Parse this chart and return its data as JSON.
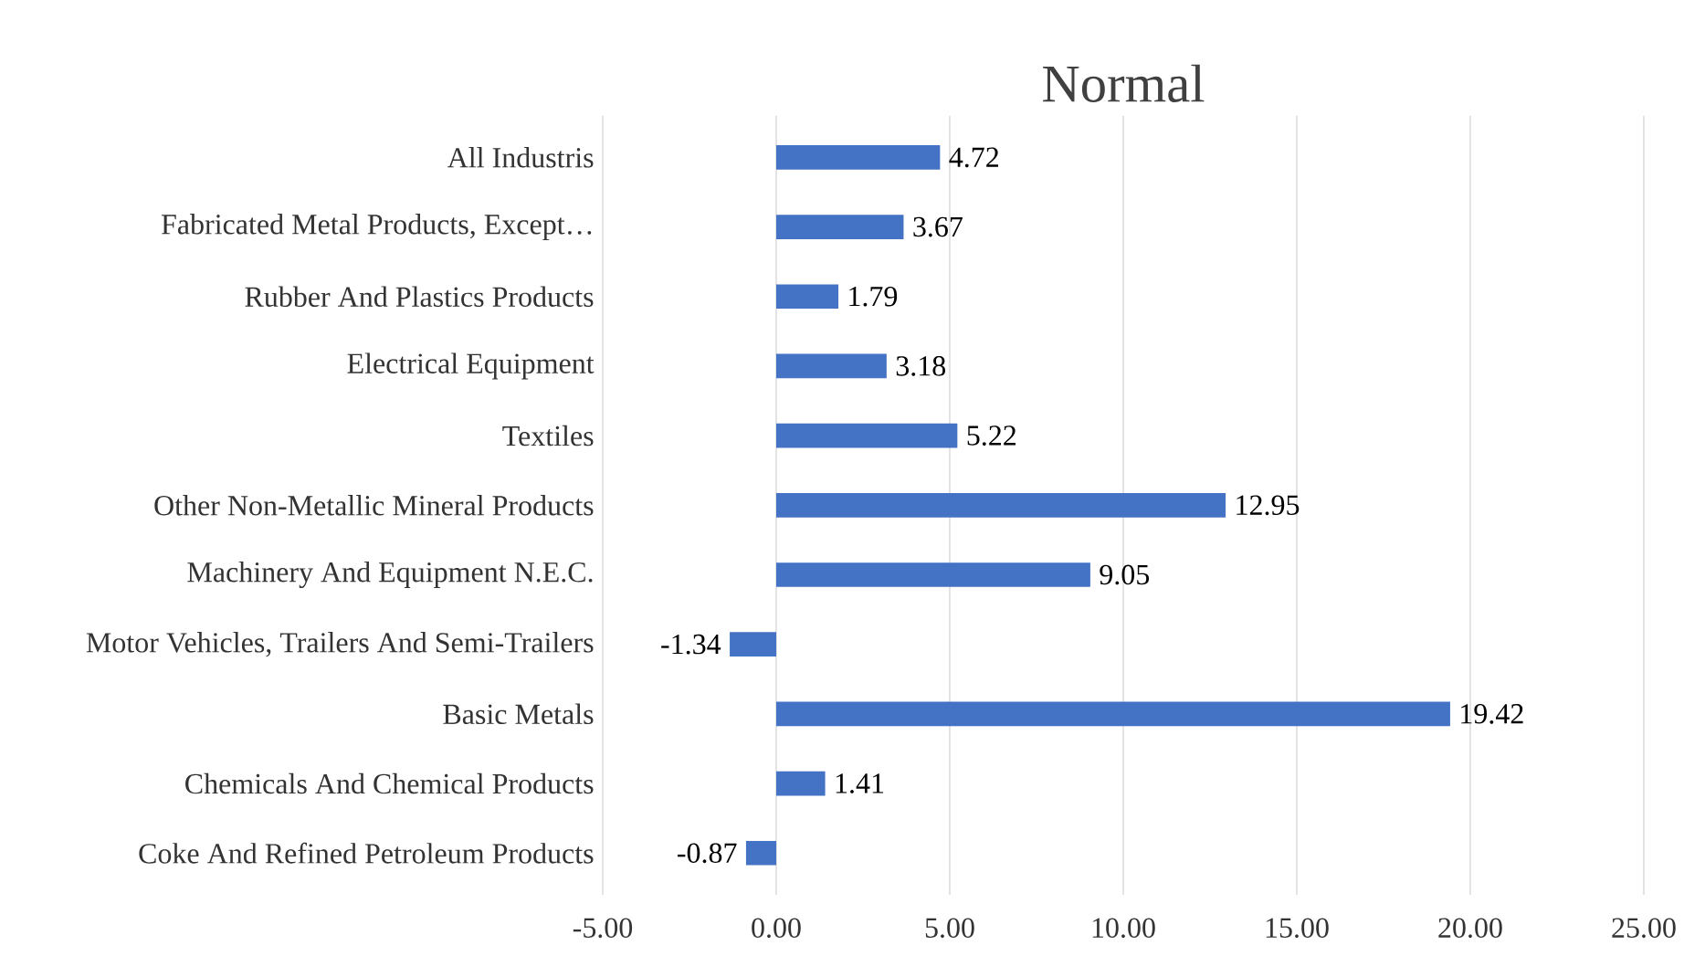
{
  "chart_data": {
    "type": "bar",
    "orientation": "horizontal",
    "title": "Normal",
    "categories": [
      "All Industris",
      "Fabricated Metal Products, Except…",
      "Rubber And Plastics Products",
      "Electrical  Equipment",
      "Textiles",
      "Other Non-Metallic Mineral Products",
      "Machinery And Equipment N.E.C.",
      "Motor Vehicles,  Trailers  And Semi-Trailers",
      "Basic Metals",
      "Chemicals  And Chemical Products",
      "Coke And Refined  Petroleum Products"
    ],
    "values": [
      4.72,
      3.67,
      1.79,
      3.18,
      5.22,
      12.95,
      9.05,
      -1.34,
      19.42,
      1.41,
      -0.87
    ],
    "color": "#4472c4",
    "xlim": [
      -5,
      25
    ],
    "xticks": [
      {
        "value": -5,
        "label": "-5.00"
      },
      {
        "value": 0,
        "label": "0.00"
      },
      {
        "value": 5,
        "label": "5.00"
      },
      {
        "value": 10,
        "label": "10.00"
      },
      {
        "value": 15,
        "label": "15.00"
      },
      {
        "value": 20,
        "label": "20.00"
      },
      {
        "value": 25,
        "label": "25.00"
      }
    ],
    "grid": "x",
    "data_labels": true
  }
}
